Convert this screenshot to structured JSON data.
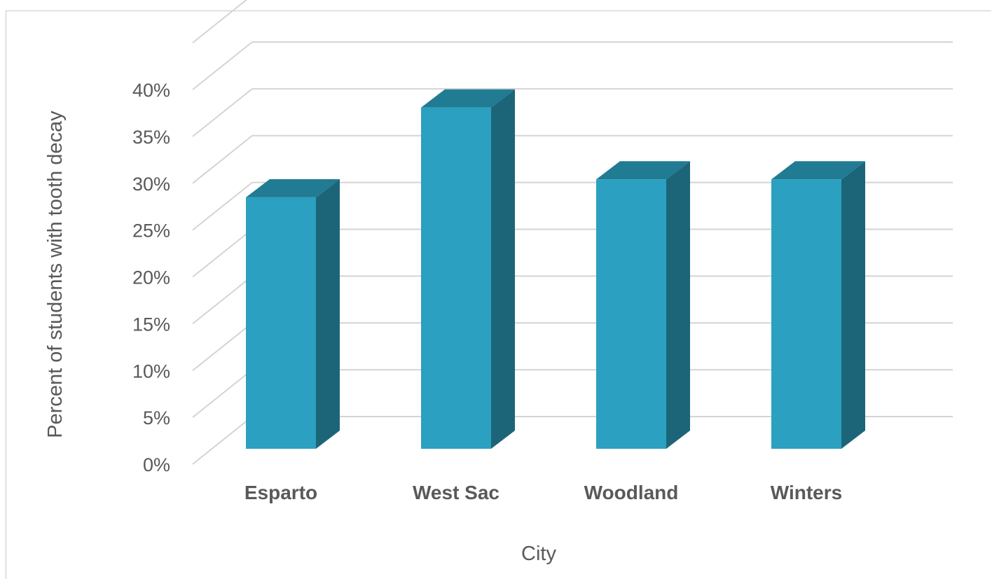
{
  "chart_data": {
    "type": "bar",
    "title": "",
    "xlabel": "City",
    "ylabel": "Percent of students with tooth decay",
    "categories": [
      "Esparto",
      "West Sac",
      "Woodland",
      "Winters"
    ],
    "values": [
      28,
      38,
      30,
      30
    ],
    "value_format": "percent",
    "ylim": [
      0,
      40
    ],
    "y_ticks": [
      0,
      5,
      10,
      15,
      20,
      25,
      30,
      35,
      40
    ],
    "grid": true,
    "legend": "none",
    "style": "3d-column",
    "colors": {
      "bar_front": "#2ba0c0",
      "bar_side": "#1c6579",
      "bar_top": "#207b93",
      "grid": "#d4d4d4",
      "text": "#595959"
    }
  }
}
